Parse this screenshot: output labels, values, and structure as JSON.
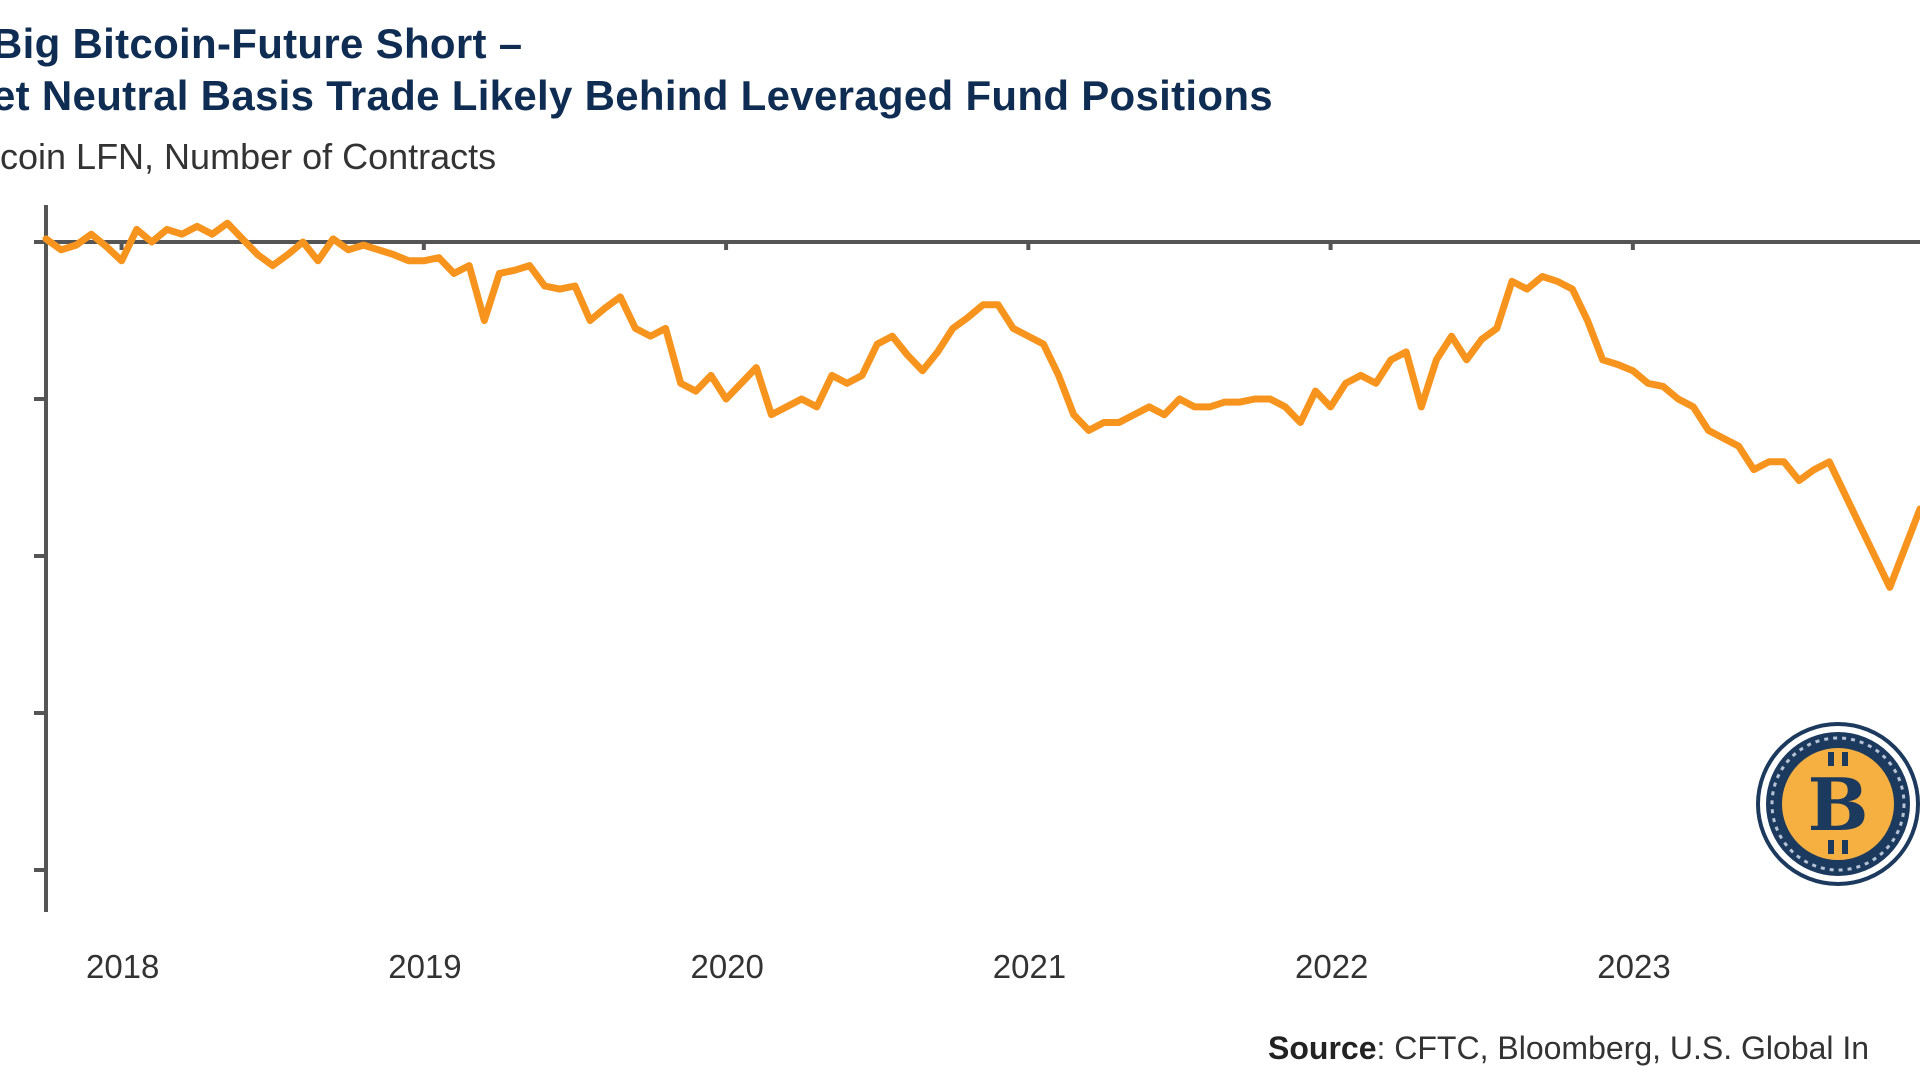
{
  "title_line1": "Big Bitcoin-Future Short –",
  "title_line2": "et Neutral Basis Trade Likely Behind Leveraged Fund Positions",
  "subtitle": "tcoin LFN, Number of Contracts",
  "source_label": "Source",
  "source_text": ": CFTC, Bloomberg, U.S. Global In",
  "colors": {
    "line": "#f7941d",
    "title": "#0f2d52",
    "axis": "#555555",
    "coin_ring": "#1c3a5e",
    "coin_gold": "#f5b041"
  },
  "logo": {
    "icon": "bitcoin-seal-icon",
    "text": "B"
  },
  "chart_data": {
    "type": "line",
    "x_tick_labels": [
      "2018",
      "2019",
      "2020",
      "2021",
      "2022",
      "2023"
    ],
    "y_tick_labels": [],
    "ylim": [
      -4.2,
      0.2
    ],
    "x_range": [
      2017.75,
      2023.95
    ],
    "series": [
      {
        "x": [
          2017.75,
          2017.8,
          2017.85,
          2017.9,
          2017.95,
          2018.0,
          2018.05,
          2018.1,
          2018.15,
          2018.2,
          2018.25,
          2018.3,
          2018.35,
          2018.4,
          2018.45,
          2018.5,
          2018.55,
          2018.6,
          2018.65,
          2018.7,
          2018.75,
          2018.8,
          2018.85,
          2018.9,
          2018.95,
          2019.0,
          2019.05,
          2019.1,
          2019.15,
          2019.2,
          2019.25,
          2019.3,
          2019.35,
          2019.4,
          2019.45,
          2019.5,
          2019.55,
          2019.6,
          2019.65,
          2019.7,
          2019.75,
          2019.8,
          2019.85,
          2019.9,
          2019.95,
          2020.0,
          2020.05,
          2020.1,
          2020.15,
          2020.2,
          2020.25,
          2020.3,
          2020.35,
          2020.4,
          2020.45,
          2020.5,
          2020.55,
          2020.6,
          2020.65,
          2020.7,
          2020.75,
          2020.8,
          2020.85,
          2020.9,
          2020.95,
          2021.0,
          2021.05,
          2021.1,
          2021.15,
          2021.2,
          2021.25,
          2021.3,
          2021.35,
          2021.4,
          2021.45,
          2021.5,
          2021.55,
          2021.6,
          2021.65,
          2021.7,
          2021.75,
          2021.8,
          2021.85,
          2021.9,
          2021.95,
          2022.0,
          2022.05,
          2022.1,
          2022.15,
          2022.2,
          2022.25,
          2022.3,
          2022.35,
          2022.4,
          2022.45,
          2022.5,
          2022.55,
          2022.6,
          2022.65,
          2022.7,
          2022.75,
          2022.8,
          2022.85,
          2022.9,
          2022.95,
          2023.0,
          2023.05,
          2023.1,
          2023.15,
          2023.2,
          2023.25,
          2023.3,
          2023.35,
          2023.4,
          2023.45,
          2023.5,
          2023.55,
          2023.6,
          2023.65,
          2023.7,
          2023.75,
          2023.8,
          2023.85,
          2023.9,
          2023.95
        ],
        "y": [
          0.02,
          -0.05,
          -0.02,
          0.05,
          -0.03,
          -0.12,
          0.08,
          0.0,
          0.08,
          0.05,
          0.1,
          0.05,
          0.12,
          0.02,
          -0.08,
          -0.15,
          -0.08,
          0.0,
          -0.12,
          0.02,
          -0.05,
          -0.02,
          -0.05,
          -0.08,
          -0.12,
          -0.12,
          -0.1,
          -0.2,
          -0.15,
          -0.5,
          -0.2,
          -0.18,
          -0.15,
          -0.28,
          -0.3,
          -0.28,
          -0.5,
          -0.42,
          -0.35,
          -0.55,
          -0.6,
          -0.55,
          -0.9,
          -0.95,
          -0.85,
          -1.0,
          -0.9,
          -0.8,
          -1.1,
          -1.05,
          -1.0,
          -1.05,
          -0.85,
          -0.9,
          -0.85,
          -0.65,
          -0.6,
          -0.72,
          -0.82,
          -0.7,
          -0.55,
          -0.48,
          -0.4,
          -0.4,
          -0.55,
          -0.6,
          -0.65,
          -0.85,
          -1.1,
          -1.2,
          -1.15,
          -1.15,
          -1.1,
          -1.05,
          -1.1,
          -1.0,
          -1.05,
          -1.05,
          -1.02,
          -1.02,
          -1.0,
          -1.0,
          -1.05,
          -1.15,
          -0.95,
          -1.05,
          -0.9,
          -0.85,
          -0.9,
          -0.75,
          -0.7,
          -1.05,
          -0.75,
          -0.6,
          -0.75,
          -0.62,
          -0.55,
          -0.25,
          -0.3,
          -0.22,
          -0.25,
          -0.3,
          -0.5,
          -0.75,
          -0.78,
          -0.82,
          -0.9,
          -0.92,
          -1.0,
          -1.05,
          -1.2,
          -1.25,
          -1.3,
          -1.45,
          -1.4,
          -1.4,
          -1.52,
          -1.45,
          -1.4,
          -1.6,
          -1.8,
          -2.0,
          -2.2,
          -1.95,
          -1.7
        ]
      }
    ]
  }
}
